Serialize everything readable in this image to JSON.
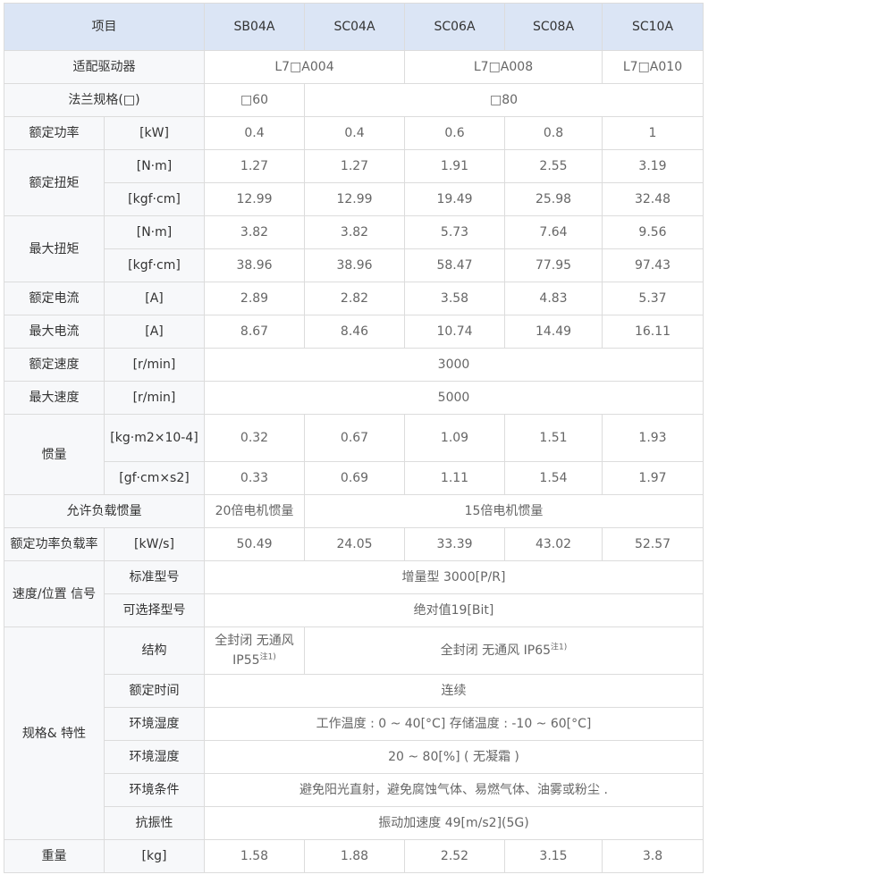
{
  "header": [
    "项目",
    "SB04A",
    "SC04A",
    "SC06A",
    "SC08A",
    "SC10A"
  ],
  "rows": [
    [
      "适配驱动器",
      "L7□A004",
      "L7□A008",
      "L7□A010"
    ],
    [
      "法兰规格(□)",
      "□60",
      "□80"
    ],
    [
      "额定功率",
      "[kW]",
      "0.4",
      "0.4",
      "0.6",
      "0.8",
      "1"
    ],
    [
      "额定扭矩",
      "[N·m]",
      "1.27",
      "1.27",
      "1.91",
      "2.55",
      "3.19"
    ],
    [
      "[kgf·cm]",
      "12.99",
      "12.99",
      "19.49",
      "25.98",
      "32.48"
    ],
    [
      "最大扭矩",
      "[N·m]",
      "3.82",
      "3.82",
      "5.73",
      "7.64",
      "9.56"
    ],
    [
      "[kgf·cm]",
      "38.96",
      "38.96",
      "58.47",
      "77.95",
      "97.43"
    ],
    [
      "额定电流",
      "[A]",
      "2.89",
      "2.82",
      "3.58",
      "4.83",
      "5.37"
    ],
    [
      "最大电流",
      "[A]",
      "8.67",
      "8.46",
      "10.74",
      "14.49",
      "16.11"
    ],
    [
      "额定速度",
      "[r/min]",
      "3000"
    ],
    [
      "最大速度",
      "[r/min]",
      "5000"
    ],
    [
      "惯量",
      "[kg·m2×10-4]",
      "0.32",
      "0.67",
      "1.09",
      "1.51",
      "1.93"
    ],
    [
      "[gf·cm×s2]",
      "0.33",
      "0.69",
      "1.11",
      "1.54",
      "1.97"
    ],
    [
      "允许负载惯量",
      "20倍电机惯量",
      "15倍电机惯量"
    ],
    [
      "额定功率负载率",
      "[kW/s]",
      "50.49",
      "24.05",
      "33.39",
      "43.02",
      "52.57"
    ],
    [
      "速度/位置 信号",
      "标准型号",
      "增量型 3000[P/R]"
    ],
    [
      "可选择型号",
      "绝对值19[Bit]"
    ],
    [
      "规格& 特性",
      "结构",
      "全封闭  无通风 IP55",
      "全封闭 无通风 IP65"
    ],
    [
      "额定时间",
      "连续"
    ],
    [
      "环境湿度",
      "工作温度 : 0 ~ 40[°C]  存储温度 : -10 ~ 60[°C]"
    ],
    [
      "环境湿度",
      "20 ~ 80[%] ( 无凝霜 )"
    ],
    [
      "环境条件",
      "避免阳光直射，避免腐蚀气体、易燃气体、油雾或粉尘 ."
    ],
    [
      "抗振性",
      "振动加速度 49[m/s2](5G)"
    ],
    [
      "重量",
      "[kg]",
      "1.58",
      "1.88",
      "2.52",
      "3.15",
      "3.8"
    ]
  ],
  "footnote_mark": "注1)"
}
